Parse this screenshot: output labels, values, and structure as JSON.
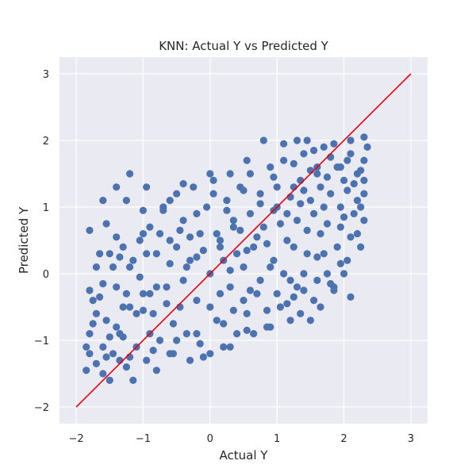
{
  "chart_data": {
    "type": "scatter",
    "title": "KNN: Actual Y vs Predicted Y",
    "xlabel": "Actual Y",
    "ylabel": "Predicted Y",
    "xlim": [
      -2.25,
      3.25
    ],
    "ylim": [
      -2.25,
      3.25
    ],
    "xticks": [
      -2,
      -1,
      0,
      1,
      2,
      3
    ],
    "yticks": [
      -2,
      -1,
      0,
      1,
      2,
      3
    ],
    "xtick_labels": [
      "−2",
      "−1",
      "0",
      "1",
      "2",
      "3"
    ],
    "ytick_labels": [
      "−2",
      "−1",
      "0",
      "1",
      "2",
      "3"
    ],
    "grid": true,
    "series": [
      {
        "kind": "scatter",
        "color": "#4c72b0",
        "points": [
          [
            -1.85,
            -1.45
          ],
          [
            -1.8,
            -0.9
          ],
          [
            -1.75,
            -0.4
          ],
          [
            -1.7,
            0.1
          ],
          [
            -1.8,
            -1.2
          ],
          [
            -1.6,
            -1.5
          ],
          [
            -1.55,
            -0.7
          ],
          [
            -1.5,
            0.3
          ],
          [
            -1.45,
            -1.2
          ],
          [
            -1.4,
            -0.2
          ],
          [
            -1.35,
            -0.9
          ],
          [
            -1.3,
            0.4
          ],
          [
            -1.25,
            -1.4
          ],
          [
            -1.2,
            -0.5
          ],
          [
            -1.15,
            0.2
          ],
          [
            -1.1,
            -1.1
          ],
          [
            -1.05,
            0.5
          ],
          [
            -1.0,
            -0.3
          ],
          [
            -0.95,
            -1.3
          ],
          [
            -0.9,
            0.7
          ],
          [
            -0.85,
            -0.6
          ],
          [
            -0.8,
            0.3
          ],
          [
            -0.75,
            -1.0
          ],
          [
            -0.7,
            1.0
          ],
          [
            -0.65,
            -0.2
          ],
          [
            -0.6,
            0.5
          ],
          [
            -0.55,
            -1.2
          ],
          [
            -0.5,
            1.2
          ],
          [
            -0.45,
            -0.5
          ],
          [
            -0.4,
            0.8
          ],
          [
            -0.35,
            -0.9
          ],
          [
            -0.3,
            0.2
          ],
          [
            -0.25,
            1.3
          ],
          [
            -0.2,
            -0.4
          ],
          [
            -0.15,
            0.6
          ],
          [
            -0.1,
            -1.25
          ],
          [
            -0.05,
            1.0
          ],
          [
            0.0,
            0.0
          ],
          [
            0.05,
            1.4
          ],
          [
            0.1,
            -0.7
          ],
          [
            0.15,
            0.5
          ],
          [
            0.2,
            -1.1
          ],
          [
            0.25,
            1.1
          ],
          [
            0.3,
            -0.2
          ],
          [
            0.35,
            0.8
          ],
          [
            0.4,
            -0.9
          ],
          [
            0.45,
            1.3
          ],
          [
            0.5,
            0.1
          ],
          [
            0.55,
            -0.6
          ],
          [
            0.6,
            1.5
          ],
          [
            0.65,
            0.4
          ],
          [
            0.7,
            -0.3
          ],
          [
            0.75,
            1.2
          ],
          [
            0.8,
            0.7
          ],
          [
            0.85,
            -0.8
          ],
          [
            0.9,
            1.6
          ],
          [
            0.95,
            0.2
          ],
          [
            1.0,
            1.0
          ],
          [
            1.05,
            -0.5
          ],
          [
            1.1,
            1.7
          ],
          [
            1.15,
            0.5
          ],
          [
            1.2,
            -0.1
          ],
          [
            1.25,
            1.3
          ],
          [
            1.3,
            0.8
          ],
          [
            1.35,
            -0.6
          ],
          [
            1.4,
            1.8
          ],
          [
            1.45,
            0.3
          ],
          [
            1.5,
            1.1
          ],
          [
            1.55,
            -0.4
          ],
          [
            1.6,
            1.5
          ],
          [
            1.65,
            0.6
          ],
          [
            1.7,
            1.9
          ],
          [
            1.75,
            0.0
          ],
          [
            1.8,
            1.2
          ],
          [
            1.85,
            -0.2
          ],
          [
            1.9,
            1.6
          ],
          [
            1.95,
            0.7
          ],
          [
            2.0,
            1.4
          ],
          [
            2.05,
            0.2
          ],
          [
            2.1,
            1.8
          ],
          [
            2.15,
            0.9
          ],
          [
            2.2,
            1.5
          ],
          [
            2.25,
            0.4
          ],
          [
            2.3,
            2.05
          ],
          [
            2.3,
            1.2
          ],
          [
            2.35,
            1.9
          ],
          [
            2.2,
            0.6
          ],
          [
            2.0,
            0.0
          ],
          [
            -1.6,
            1.1
          ],
          [
            -1.25,
            1.1
          ],
          [
            -1.2,
            1.5
          ],
          [
            -0.95,
            1.3
          ],
          [
            -0.4,
            1.35
          ],
          [
            0.3,
            1.5
          ],
          [
            0.8,
            2.0
          ],
          [
            1.1,
            1.95
          ],
          [
            1.45,
            2.0
          ],
          [
            1.6,
            1.6
          ],
          [
            -1.55,
            0.75
          ],
          [
            -1.0,
            0.95
          ],
          [
            -0.6,
            1.1
          ],
          [
            0.0,
            1.5
          ],
          [
            0.55,
            1.7
          ],
          [
            1.3,
            2.0
          ],
          [
            -1.8,
            0.65
          ],
          [
            -1.65,
            -0.35
          ],
          [
            -1.7,
            -1.35
          ],
          [
            -1.5,
            -1.6
          ],
          [
            -1.35,
            -1.3
          ],
          [
            -1.15,
            -1.6
          ],
          [
            -0.8,
            -1.45
          ],
          [
            -0.6,
            -1.2
          ],
          [
            -0.3,
            -1.3
          ],
          [
            0.0,
            -1.2
          ],
          [
            0.3,
            -1.1
          ],
          [
            0.65,
            -0.9
          ],
          [
            0.9,
            -0.8
          ],
          [
            1.2,
            -0.7
          ],
          [
            1.5,
            -0.7
          ],
          [
            1.85,
            -0.25
          ],
          [
            2.1,
            -0.35
          ],
          [
            1.0,
            -0.3
          ],
          [
            0.5,
            -0.4
          ],
          [
            -0.2,
            -0.9
          ],
          [
            -0.9,
            -0.9
          ],
          [
            1.65,
            -0.5
          ],
          [
            1.8,
            -0.15
          ],
          [
            1.4,
            -0.25
          ],
          [
            1.1,
            0.0
          ],
          [
            0.75,
            -0.1
          ],
          [
            0.4,
            0.3
          ],
          [
            0.1,
            0.6
          ],
          [
            -0.2,
            0.9
          ],
          [
            -0.5,
            0.4
          ],
          [
            -0.8,
            -0.2
          ],
          [
            -1.1,
            -0.6
          ],
          [
            -1.4,
            -0.8
          ],
          [
            -1.6,
            -1.1
          ],
          [
            -1.45,
            0.1
          ],
          [
            -1.2,
            0.1
          ],
          [
            -0.75,
            0.6
          ],
          [
            -0.3,
            0.55
          ],
          [
            0.2,
            0.2
          ],
          [
            0.6,
            0.9
          ],
          [
            1.0,
            1.3
          ],
          [
            1.35,
            1.4
          ],
          [
            1.7,
            1.0
          ],
          [
            1.95,
            1.6
          ],
          [
            2.2,
            1.1
          ],
          [
            2.3,
            0.8
          ],
          [
            0.0,
            -0.5
          ],
          [
            -0.4,
            -0.1
          ],
          [
            0.9,
            0.1
          ],
          [
            1.25,
            0.4
          ],
          [
            1.55,
            0.9
          ],
          [
            -1.0,
            -0.55
          ],
          [
            -1.3,
            -0.95
          ],
          [
            -0.55,
            -0.75
          ],
          [
            0.35,
            -0.55
          ],
          [
            0.6,
            -0.25
          ],
          [
            1.3,
            -0.2
          ],
          [
            1.6,
            0.25
          ],
          [
            1.9,
            0.4
          ],
          [
            2.1,
            0.55
          ],
          [
            -1.7,
            -0.6
          ],
          [
            -1.85,
            -1.1
          ],
          [
            -1.55,
            -1.25
          ],
          [
            -1.25,
            -0.3
          ],
          [
            -0.95,
            0.3
          ],
          [
            -0.65,
            -0.45
          ],
          [
            0.15,
            -0.3
          ],
          [
            0.45,
            0.65
          ],
          [
            0.85,
            0.45
          ],
          [
            1.15,
            0.9
          ],
          [
            1.45,
            0.65
          ],
          [
            1.75,
            1.45
          ],
          [
            2.05,
            1.25
          ],
          [
            2.25,
            1.55
          ],
          [
            -0.1,
            0.35
          ],
          [
            0.25,
            0.95
          ],
          [
            -1.75,
            -0.75
          ],
          [
            -1.65,
            0.3
          ],
          [
            -1.4,
            0.55
          ],
          [
            -1.0,
            0.6
          ],
          [
            -0.7,
            0.95
          ],
          [
            0.05,
            1.2
          ],
          [
            0.5,
            1.25
          ],
          [
            0.95,
            1.45
          ],
          [
            1.25,
            1.65
          ],
          [
            1.55,
            1.85
          ],
          [
            1.85,
            1.95
          ],
          [
            2.1,
            2.0
          ],
          [
            2.3,
            1.7
          ],
          [
            2.3,
            1.4
          ],
          [
            2.25,
            1.0
          ],
          [
            2.0,
            0.85
          ],
          [
            1.7,
            0.3
          ],
          [
            1.4,
            0.0
          ],
          [
            1.15,
            -0.45
          ],
          [
            0.85,
            -0.55
          ],
          [
            0.55,
            -0.85
          ],
          [
            0.2,
            -0.75
          ],
          [
            -0.15,
            -1.05
          ],
          [
            -0.5,
            -1.0
          ],
          [
            -0.85,
            -1.15
          ],
          [
            -1.2,
            -1.25
          ],
          [
            -1.5,
            -0.95
          ],
          [
            -1.8,
            -0.25
          ],
          [
            -1.05,
            -0.05
          ],
          [
            -0.35,
            0.1
          ],
          [
            0.3,
            0.05
          ],
          [
            0.7,
            0.55
          ],
          [
            1.05,
            0.75
          ],
          [
            1.35,
            1.05
          ],
          [
            1.65,
            1.3
          ],
          [
            1.95,
            1.0
          ],
          [
            -1.3,
            -0.5
          ],
          [
            -0.9,
            -0.3
          ],
          [
            -0.6,
            0.15
          ],
          [
            -0.2,
            0.25
          ],
          [
            0.15,
            0.4
          ],
          [
            0.55,
            0.35
          ],
          [
            0.95,
            0.95
          ],
          [
            1.4,
            1.25
          ],
          [
            1.75,
            0.75
          ],
          [
            2.15,
            1.35
          ],
          [
            -1.6,
            -0.15
          ],
          [
            -1.35,
            0.25
          ],
          [
            -0.45,
            0.65
          ],
          [
            0.35,
            0.7
          ],
          [
            0.75,
            1.05
          ],
          [
            1.2,
            1.15
          ],
          [
            1.5,
            1.55
          ],
          [
            1.8,
            1.75
          ],
          [
            2.05,
            1.7
          ],
          [
            1.95,
            0.15
          ],
          [
            1.6,
            -0.1
          ],
          [
            1.25,
            -0.35
          ],
          [
            -1.4,
            1.3
          ]
        ]
      },
      {
        "kind": "line",
        "color": "#e8000b",
        "points": [
          [
            -2,
            -2
          ],
          [
            3,
            3
          ]
        ]
      }
    ]
  }
}
